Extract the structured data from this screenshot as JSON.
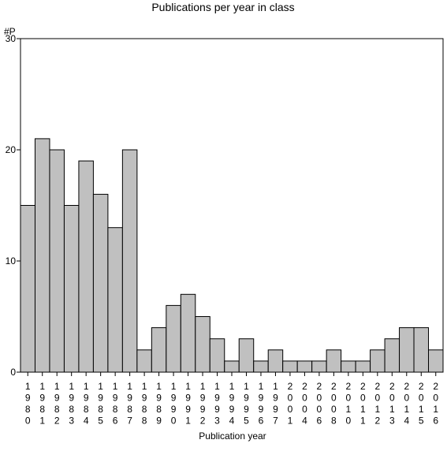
{
  "chart_data": {
    "type": "bar",
    "title": "Publications per year in class",
    "ylabel": "#P",
    "xlabel": "Publication year",
    "ylim": [
      0,
      30
    ],
    "yticks": [
      0,
      10,
      20,
      30
    ],
    "grid": false,
    "legend": "none",
    "categories": [
      "1980",
      "1981",
      "1982",
      "1983",
      "1984",
      "1985",
      "1986",
      "1987",
      "1988",
      "1989",
      "1990",
      "1991",
      "1992",
      "1993",
      "1994",
      "1995",
      "1996",
      "1997",
      "2001",
      "2004",
      "2006",
      "2008",
      "2010",
      "2011",
      "2012",
      "2013",
      "2014",
      "2015",
      "2016"
    ],
    "values": [
      15,
      21,
      20,
      15,
      19,
      16,
      13,
      20,
      2,
      4,
      6,
      7,
      5,
      3,
      1,
      3,
      1,
      2,
      1,
      1,
      1,
      2,
      1,
      1,
      2,
      3,
      4,
      4,
      2
    ],
    "bar_color": "#c0c0c0",
    "edge_color": "#000000"
  }
}
